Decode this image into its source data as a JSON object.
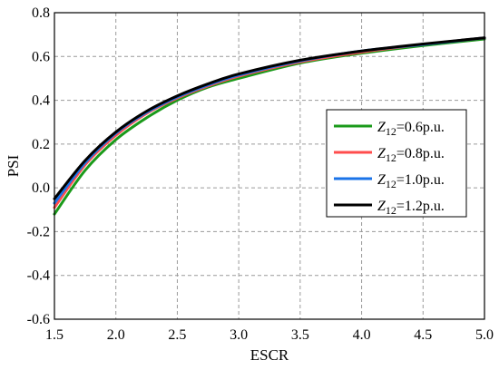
{
  "chart_data": {
    "type": "line",
    "title": "",
    "xlabel": "ESCR",
    "ylabel": "PSI",
    "xlim": [
      1.5,
      5.0
    ],
    "ylim": [
      -0.6,
      0.8
    ],
    "x_ticks": [
      "1.5",
      "2.0",
      "2.5",
      "3.0",
      "3.5",
      "4.0",
      "4.5",
      "5.0"
    ],
    "y_ticks": [
      "0.8",
      "0.6",
      "0.4",
      "0.2",
      "0.0",
      "-0.2",
      "-0.4",
      "-0.6"
    ],
    "x_tick_values": [
      1.5,
      2.0,
      2.5,
      3.0,
      3.5,
      4.0,
      4.5,
      5.0
    ],
    "y_tick_values": [
      0.8,
      0.6,
      0.4,
      0.2,
      0.0,
      -0.2,
      -0.4,
      -0.6
    ],
    "grid": true,
    "legend_position": "right",
    "x": [
      1.5,
      1.75,
      2.0,
      2.25,
      2.5,
      2.75,
      3.0,
      3.5,
      4.0,
      4.5,
      5.0
    ],
    "series": [
      {
        "name": "0.6p.u.",
        "color": "#1a9a1a",
        "values": [
          -0.12,
          0.08,
          0.22,
          0.32,
          0.4,
          0.46,
          0.5,
          0.57,
          0.615,
          0.65,
          0.68
        ]
      },
      {
        "name": "0.8p.u.",
        "color": "#ff4d4d",
        "values": [
          -0.09,
          0.105,
          0.24,
          0.34,
          0.41,
          0.465,
          0.51,
          0.575,
          0.62,
          0.655,
          0.685
        ]
      },
      {
        "name": "1.0p.u.",
        "color": "#1a73e8",
        "values": [
          -0.07,
          0.115,
          0.25,
          0.345,
          0.415,
          0.47,
          0.515,
          0.58,
          0.625,
          0.655,
          0.685
        ]
      },
      {
        "name": "1.2p.u.",
        "color": "#000000",
        "values": [
          -0.05,
          0.125,
          0.255,
          0.35,
          0.42,
          0.475,
          0.52,
          0.583,
          0.625,
          0.657,
          0.685
        ]
      }
    ],
    "legend_prefix_main": "Z",
    "legend_prefix_sub": "12",
    "legend_equals": "="
  }
}
